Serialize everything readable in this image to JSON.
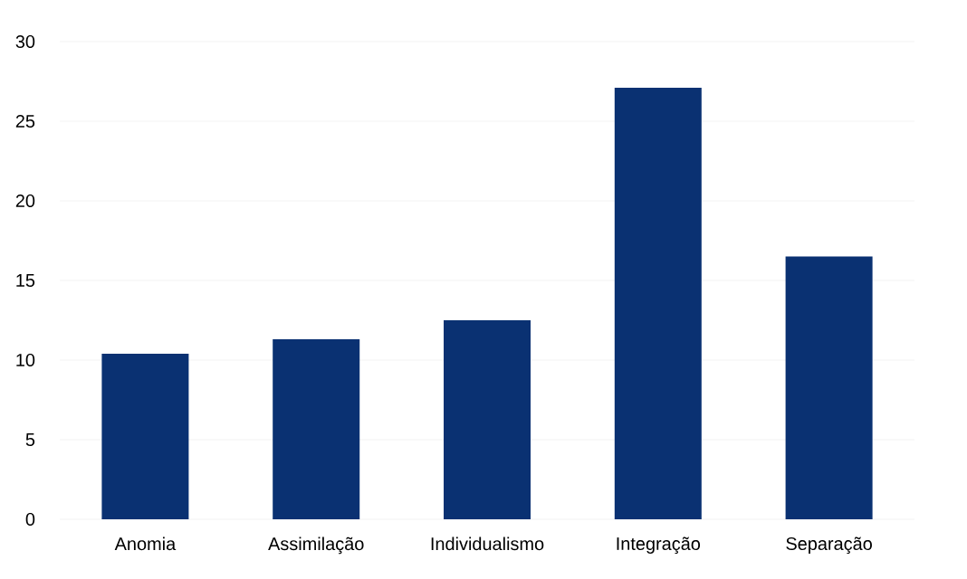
{
  "chart_data": {
    "type": "bar",
    "categories": [
      "Anomia",
      "Assimilação",
      "Individualismo",
      "Integração",
      "Separação"
    ],
    "values": [
      10.4,
      11.3,
      12.5,
      27.1,
      16.5
    ],
    "color": "#0a3172",
    "ylim": [
      0,
      30
    ],
    "yticks": [
      0,
      5,
      10,
      15,
      20,
      25,
      30
    ],
    "grid": "y"
  }
}
